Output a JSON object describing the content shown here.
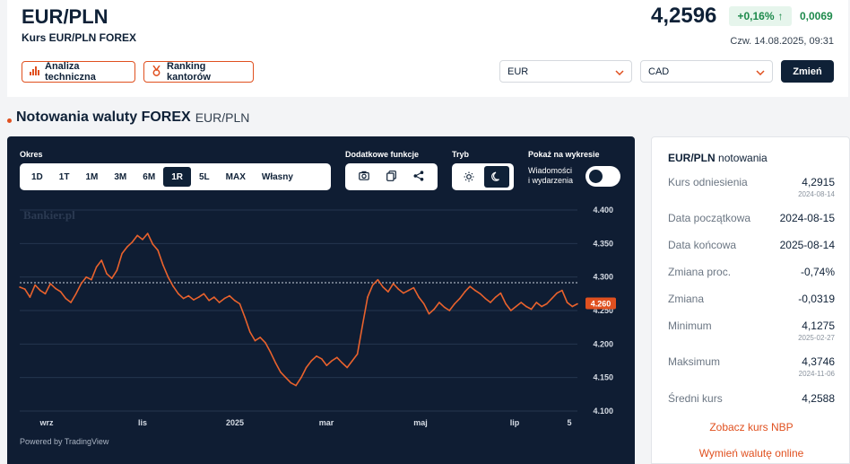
{
  "header": {
    "pair": "EUR/PLN",
    "subtitle": "Kurs EUR/PLN FOREX",
    "price": "4,2596",
    "change_pct": "+0,16%",
    "change_arrow": "↑",
    "change_abs": "0,0069",
    "datetime": "Czw. 14.08.2025, 09:31",
    "btn_analysis": "Analiza techniczna",
    "btn_ranking": "Ranking kantorów",
    "select_from": "EUR",
    "select_to": "CAD",
    "btn_change": "Zmień"
  },
  "section": {
    "title": "Notowania waluty FOREX",
    "subtitle": "EUR/PLN"
  },
  "chart_panel": {
    "label_range": "Okres",
    "ranges": [
      "1D",
      "1T",
      "1M",
      "3M",
      "6M",
      "1R",
      "5L",
      "MAX",
      "Własny"
    ],
    "active_range": "1R",
    "label_functions": "Dodatkowe funkcje",
    "label_mode": "Tryb",
    "label_show": "Pokaż na wykresie",
    "events_line1": "Wiadomości",
    "events_line2": "i wydarzenia",
    "watermark": "Bankier.pl",
    "powered": "Powered by TradingView",
    "icons": [
      "camera-icon",
      "copy-icon",
      "share-icon",
      "sun-icon",
      "moon-icon"
    ]
  },
  "chart_data": {
    "type": "line",
    "title": "",
    "y_ticks": [
      "4.400",
      "4.350",
      "4.300",
      "4.250",
      "4.200",
      "4.150",
      "4.100"
    ],
    "ylim": [
      4.1,
      4.4
    ],
    "x_ticks": [
      "wrz",
      "lis",
      "2025",
      "mar",
      "maj",
      "lip",
      "5"
    ],
    "last_price_label": "4.260",
    "reference_line": 4.2915,
    "series": [
      {
        "values": [
          4.285,
          4.282,
          4.27,
          4.288,
          4.28,
          4.275,
          4.29,
          4.283,
          4.278,
          4.268,
          4.262,
          4.275,
          4.29,
          4.3,
          4.296,
          4.315,
          4.325,
          4.305,
          4.298,
          4.31,
          4.335,
          4.345,
          4.352,
          4.362,
          4.356,
          4.365,
          4.349,
          4.34,
          4.318,
          4.3,
          4.286,
          4.275,
          4.268,
          4.272,
          4.266,
          4.27,
          4.275,
          4.265,
          4.27,
          4.262,
          4.268,
          4.272,
          4.265,
          4.26,
          4.24,
          4.218,
          4.205,
          4.21,
          4.202,
          4.188,
          4.172,
          4.158,
          4.15,
          4.142,
          4.138,
          4.15,
          4.165,
          4.175,
          4.182,
          4.178,
          4.168,
          4.175,
          4.18,
          4.172,
          4.165,
          4.175,
          4.185,
          4.228,
          4.27,
          4.288,
          4.296,
          4.285,
          4.278,
          4.29,
          4.282,
          4.276,
          4.28,
          4.284,
          4.27,
          4.26,
          4.245,
          4.252,
          4.262,
          4.255,
          4.25,
          4.26,
          4.268,
          4.278,
          4.286,
          4.28,
          4.275,
          4.268,
          4.262,
          4.27,
          4.276,
          4.26,
          4.25,
          4.256,
          4.262,
          4.256,
          4.252,
          4.262,
          4.256,
          4.26,
          4.268,
          4.276,
          4.28,
          4.262,
          4.256,
          4.26
        ]
      }
    ]
  },
  "sidebar": {
    "title_pair": "EUR/PLN",
    "title_rest": "notowania",
    "rows": [
      {
        "k": "Kurs odniesienia",
        "v": "4,2915",
        "d": "2024-08-14"
      },
      {
        "k": "Data początkowa",
        "v": "2024-08-15",
        "d": ""
      },
      {
        "k": "Data końcowa",
        "v": "2025-08-14",
        "d": ""
      },
      {
        "k": "Zmiana proc.",
        "v": "-0,74%",
        "d": ""
      },
      {
        "k": "Zmiana",
        "v": "-0,0319",
        "d": ""
      },
      {
        "k": "Minimum",
        "v": "4,1275",
        "d": "2025-02-27"
      },
      {
        "k": "Maksimum",
        "v": "4,3746",
        "d": "2024-11-06"
      },
      {
        "k": "Średni kurs",
        "v": "4,2588",
        "d": ""
      }
    ],
    "link_nbp": "Zobacz kurs NBP",
    "link_exchange": "Wymień walutę online"
  },
  "colors": {
    "accent": "#e0501f",
    "navy": "#0f2137",
    "chart_bg": "#0f1d33",
    "positive": "#1e8a4c",
    "line": "#e9622d"
  }
}
